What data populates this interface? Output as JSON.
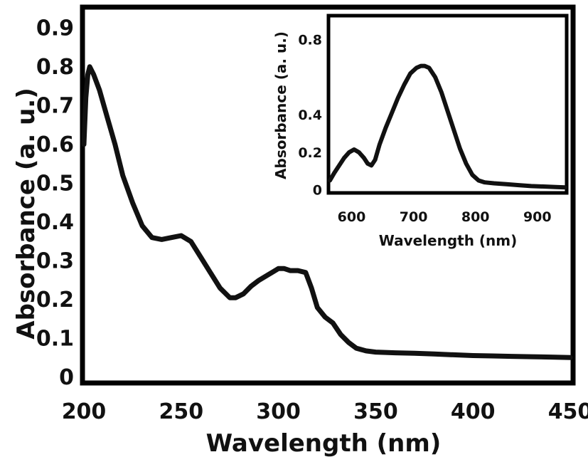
{
  "chart_data": [
    {
      "type": "line",
      "xlabel": "Wavelength (nm)",
      "ylabel": "Absorbance (a. u.)",
      "xlim": [
        200,
        450
      ],
      "ylim": [
        0,
        0.95
      ],
      "xticks": [
        "200",
        "250",
        "300",
        "350",
        "400",
        "450"
      ],
      "yticks": [
        "0",
        "0.1",
        "0.2",
        "0.3",
        "0.4",
        "0.5",
        "0.6",
        "0.7",
        "0.8",
        "0.9"
      ],
      "series": [
        {
          "x": [
            200,
            201,
            202,
            203,
            205,
            208,
            212,
            216,
            220,
            225,
            230,
            235,
            240,
            245,
            250,
            255,
            260,
            265,
            270,
            275,
            278,
            282,
            286,
            290,
            295,
            300,
            303,
            306,
            310,
            314,
            317,
            320,
            324,
            328,
            332,
            336,
            340,
            345,
            350,
            360,
            370,
            380,
            390,
            400,
            410,
            420,
            430,
            440,
            450
          ],
          "y": [
            0.6,
            0.72,
            0.78,
            0.8,
            0.78,
            0.74,
            0.67,
            0.6,
            0.52,
            0.45,
            0.39,
            0.36,
            0.355,
            0.36,
            0.365,
            0.35,
            0.31,
            0.27,
            0.23,
            0.205,
            0.205,
            0.215,
            0.235,
            0.25,
            0.265,
            0.28,
            0.28,
            0.275,
            0.275,
            0.27,
            0.23,
            0.18,
            0.155,
            0.14,
            0.11,
            0.09,
            0.075,
            0.068,
            0.065,
            0.063,
            0.062,
            0.06,
            0.058,
            0.056,
            0.055,
            0.054,
            0.053,
            0.052,
            0.051
          ]
        }
      ]
    },
    {
      "type": "line",
      "xlabel": "Wavelength (nm)",
      "ylabel": "Absorbance (a. u.)",
      "xlim": [
        565,
        945
      ],
      "ylim": [
        -0.02,
        0.92
      ],
      "xticks": [
        "600",
        "700",
        "800",
        "900"
      ],
      "yticks": [
        "0",
        "0.2",
        "0.4",
        "0.8"
      ],
      "series": [
        {
          "x": [
            565,
            572,
            580,
            588,
            596,
            604,
            612,
            620,
            626,
            632,
            638,
            645,
            655,
            665,
            675,
            685,
            695,
            705,
            712,
            718,
            725,
            735,
            745,
            755,
            765,
            775,
            785,
            795,
            805,
            815,
            830,
            850,
            870,
            890,
            910,
            930,
            945
          ],
          "y": [
            0.05,
            0.09,
            0.13,
            0.17,
            0.2,
            0.215,
            0.2,
            0.17,
            0.14,
            0.13,
            0.16,
            0.24,
            0.33,
            0.41,
            0.49,
            0.56,
            0.62,
            0.65,
            0.66,
            0.66,
            0.65,
            0.6,
            0.52,
            0.42,
            0.32,
            0.22,
            0.14,
            0.08,
            0.05,
            0.04,
            0.035,
            0.03,
            0.025,
            0.02,
            0.018,
            0.015,
            0.013
          ]
        }
      ]
    }
  ]
}
